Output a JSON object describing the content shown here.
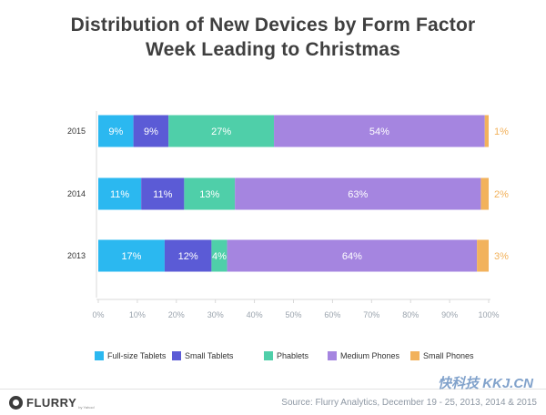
{
  "chart_data": {
    "type": "bar",
    "orientation": "horizontal",
    "stacked": true,
    "title": "Distribution of New Devices by Form Factor",
    "subtitle": "Week Leading to Christmas",
    "categories": [
      "2015",
      "2014",
      "2013"
    ],
    "series": [
      {
        "name": "Full-size Tablets",
        "color": "#2bb8f0",
        "values": [
          9,
          11,
          17
        ],
        "labels": [
          "9%",
          "11%",
          "17%"
        ]
      },
      {
        "name": "Small Tablets",
        "color": "#5b5bd6",
        "values": [
          9,
          11,
          12
        ],
        "labels": [
          "9%",
          "11%",
          "12%"
        ]
      },
      {
        "name": "Phablets",
        "color": "#4fcfa9",
        "values": [
          27,
          13,
          4
        ],
        "labels": [
          "27%",
          "13%",
          "4%"
        ]
      },
      {
        "name": "Medium Phones",
        "color": "#a585e0",
        "values": [
          54,
          63,
          64
        ],
        "labels": [
          "54%",
          "63%",
          "64%"
        ]
      },
      {
        "name": "Small Phones",
        "color": "#f2b25c",
        "values": [
          1,
          2,
          3
        ],
        "labels": [
          "1%",
          "2%",
          "3%"
        ]
      }
    ],
    "xlim": [
      0,
      100
    ],
    "xticks": [
      "0%",
      "10%",
      "20%",
      "30%",
      "40%",
      "50%",
      "60%",
      "70%",
      "80%",
      "90%",
      "100%"
    ],
    "xlabel": "",
    "ylabel": "",
    "legend_position": "bottom",
    "grid": false
  },
  "footer": {
    "logo_text": "FLURRY",
    "logo_subtext": "by Yahoo!",
    "source": "Source: Flurry Analytics, December 19 - 25, 2013, 2014 & 2015",
    "watermark": "快科技 KKJ.CN"
  }
}
